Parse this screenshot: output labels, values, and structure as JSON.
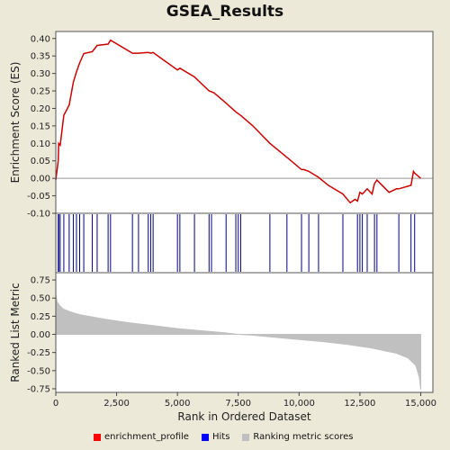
{
  "chart_data": [
    {
      "type": "line",
      "title": "GSEA_Results",
      "ylabel": "Enrichment Score (ES)",
      "ylim": [
        -0.1,
        0.42
      ],
      "yticks": [
        -0.1,
        -0.05,
        0.0,
        0.05,
        0.1,
        0.15,
        0.2,
        0.25,
        0.3,
        0.35,
        0.4
      ],
      "ytick_labels": [
        "-0.10",
        "-0.05",
        "0.00",
        "0.05",
        "0.10",
        "0.15",
        "0.20",
        "0.25",
        "0.30",
        "0.35",
        "0.40"
      ],
      "series": [
        {
          "name": "enrichment_profile",
          "x": [
            0,
            100,
            120,
            180,
            330,
            550,
            720,
            850,
            980,
            1150,
            1500,
            1700,
            2150,
            2250,
            3150,
            3400,
            3800,
            3900,
            4000,
            4400,
            5000,
            5100,
            5700,
            6300,
            6500,
            7000,
            7400,
            7600,
            8100,
            8800,
            9500,
            10100,
            10200,
            10400,
            10800,
            11200,
            11800,
            12100,
            12300,
            12400,
            12500,
            12600,
            12800,
            13000,
            13100,
            13200,
            13700,
            14000,
            14100,
            14600,
            14700,
            14750,
            15000
          ],
          "y": [
            -0.005,
            0.05,
            0.1,
            0.095,
            0.18,
            0.21,
            0.275,
            0.305,
            0.33,
            0.357,
            0.362,
            0.38,
            0.384,
            0.395,
            0.358,
            0.358,
            0.36,
            0.358,
            0.36,
            0.34,
            0.31,
            0.315,
            0.29,
            0.25,
            0.245,
            0.215,
            0.19,
            0.18,
            0.15,
            0.1,
            0.06,
            0.025,
            0.025,
            0.02,
            0.003,
            -0.02,
            -0.045,
            -0.07,
            -0.06,
            -0.065,
            -0.04,
            -0.045,
            -0.03,
            -0.045,
            -0.015,
            -0.005,
            -0.04,
            -0.03,
            -0.03,
            -0.02,
            0.02,
            0.015,
            0.0
          ]
        }
      ]
    },
    {
      "type": "hits",
      "name": "Hits",
      "x": [
        100,
        120,
        180,
        330,
        550,
        720,
        850,
        980,
        1150,
        1500,
        1700,
        2150,
        2250,
        3150,
        3400,
        3800,
        3900,
        4000,
        5000,
        5100,
        5700,
        6300,
        6400,
        7000,
        7400,
        7500,
        7600,
        8800,
        9500,
        10100,
        10400,
        10800,
        11800,
        12400,
        12500,
        12600,
        12800,
        13100,
        13200,
        14100,
        14600,
        14750
      ]
    },
    {
      "type": "area",
      "title": "",
      "xlabel": "Rank in Ordered Dataset",
      "ylabel": "Ranked List Metric",
      "xlim": [
        0,
        15500
      ],
      "xticks": [
        0,
        2500,
        5000,
        7500,
        10000,
        12500,
        15000
      ],
      "xtick_labels": [
        "0",
        "2,500",
        "5,000",
        "7,500",
        "10,000",
        "12,500",
        "15,000"
      ],
      "ylim": [
        -0.8,
        0.85
      ],
      "yticks": [
        -0.75,
        -0.5,
        -0.25,
        0.0,
        0.25,
        0.5,
        0.75
      ],
      "ytick_labels": [
        "-0.75",
        "-0.50",
        "-0.25",
        "0.00",
        "0.25",
        "0.50",
        "0.75"
      ],
      "series": [
        {
          "name": "Ranking metric scores",
          "x": [
            0,
            50,
            150,
            300,
            600,
            1000,
            2000,
            3000,
            4000,
            5000,
            6000,
            7000,
            7500,
            8000,
            9000,
            10000,
            11000,
            12000,
            13000,
            14000,
            14500,
            14800,
            14950,
            15000
          ],
          "y": [
            0.55,
            0.45,
            0.4,
            0.35,
            0.31,
            0.27,
            0.21,
            0.16,
            0.12,
            0.08,
            0.05,
            0.02,
            0.0,
            -0.01,
            -0.04,
            -0.07,
            -0.1,
            -0.14,
            -0.19,
            -0.26,
            -0.33,
            -0.43,
            -0.6,
            -0.76
          ]
        }
      ]
    }
  ],
  "legend": [
    {
      "label": "enrichment_profile",
      "color": "#ff0000"
    },
    {
      "label": "Hits",
      "color": "#0000ff"
    },
    {
      "label": "Ranking metric scores",
      "color": "#c0c0c0"
    }
  ],
  "colors": {
    "profile": "#cc0000",
    "hits": "#000080",
    "metric": "#c0c0c0",
    "background": "#ece9d8",
    "plot_bg": "#ffffff"
  }
}
